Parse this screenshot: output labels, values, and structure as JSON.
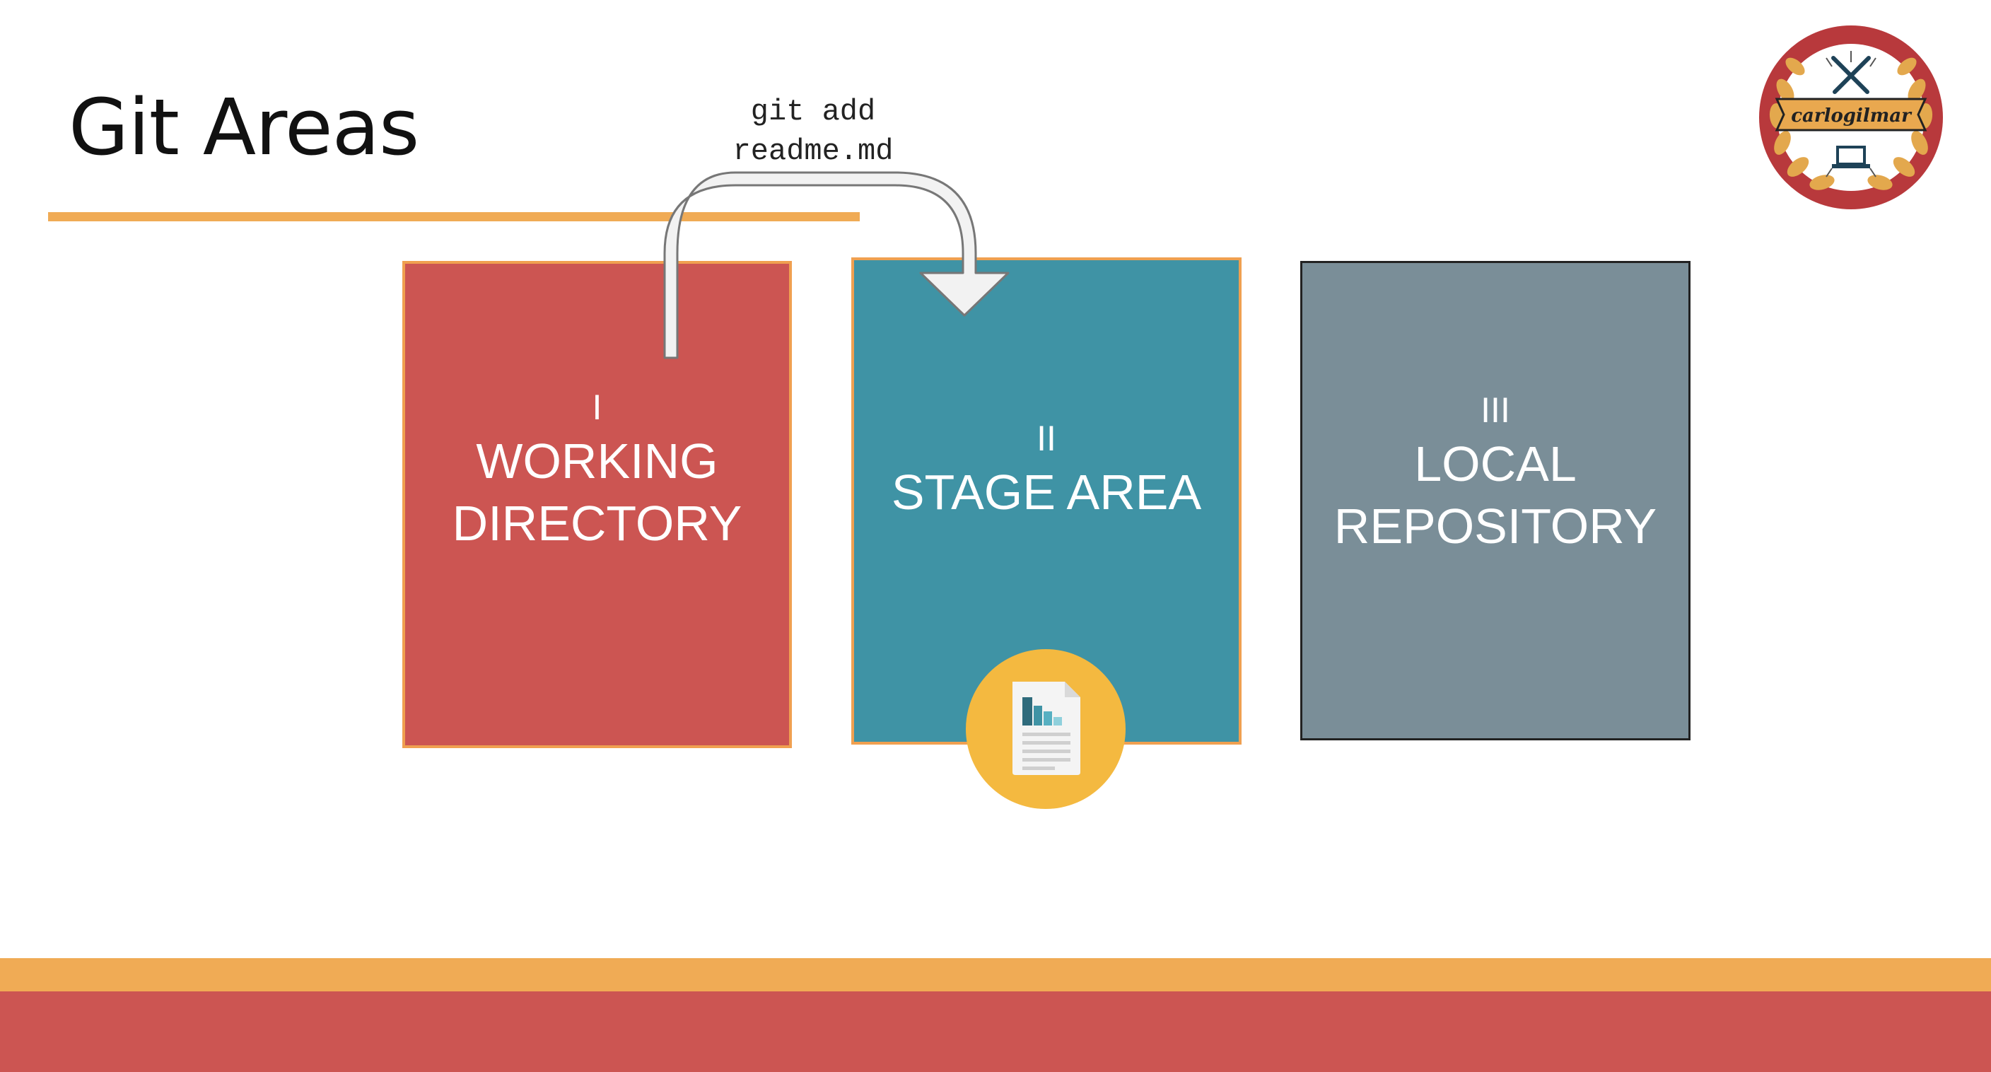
{
  "slide": {
    "title": "Git Areas"
  },
  "command": {
    "line1": "git add",
    "line2": "readme.md"
  },
  "areas": [
    {
      "number": "I",
      "name_line1": "WORKING",
      "name_line2": "DIRECTORY",
      "color": "#cc5552"
    },
    {
      "number": "II",
      "name_line1": "STAGE AREA",
      "name_line2": "",
      "color": "#3f93a5"
    },
    {
      "number": "III",
      "name_line1": "LOCAL",
      "name_line2": "REPOSITORY",
      "color": "#7a8e98"
    }
  ],
  "badge": {
    "text": "carlogilmar"
  },
  "icons": {
    "file": "document-icon",
    "badge": "laurel-badge-icon"
  },
  "colors": {
    "accent_orange": "#f0ab55",
    "accent_red": "#cc5552",
    "file_circle": "#f4b940"
  }
}
